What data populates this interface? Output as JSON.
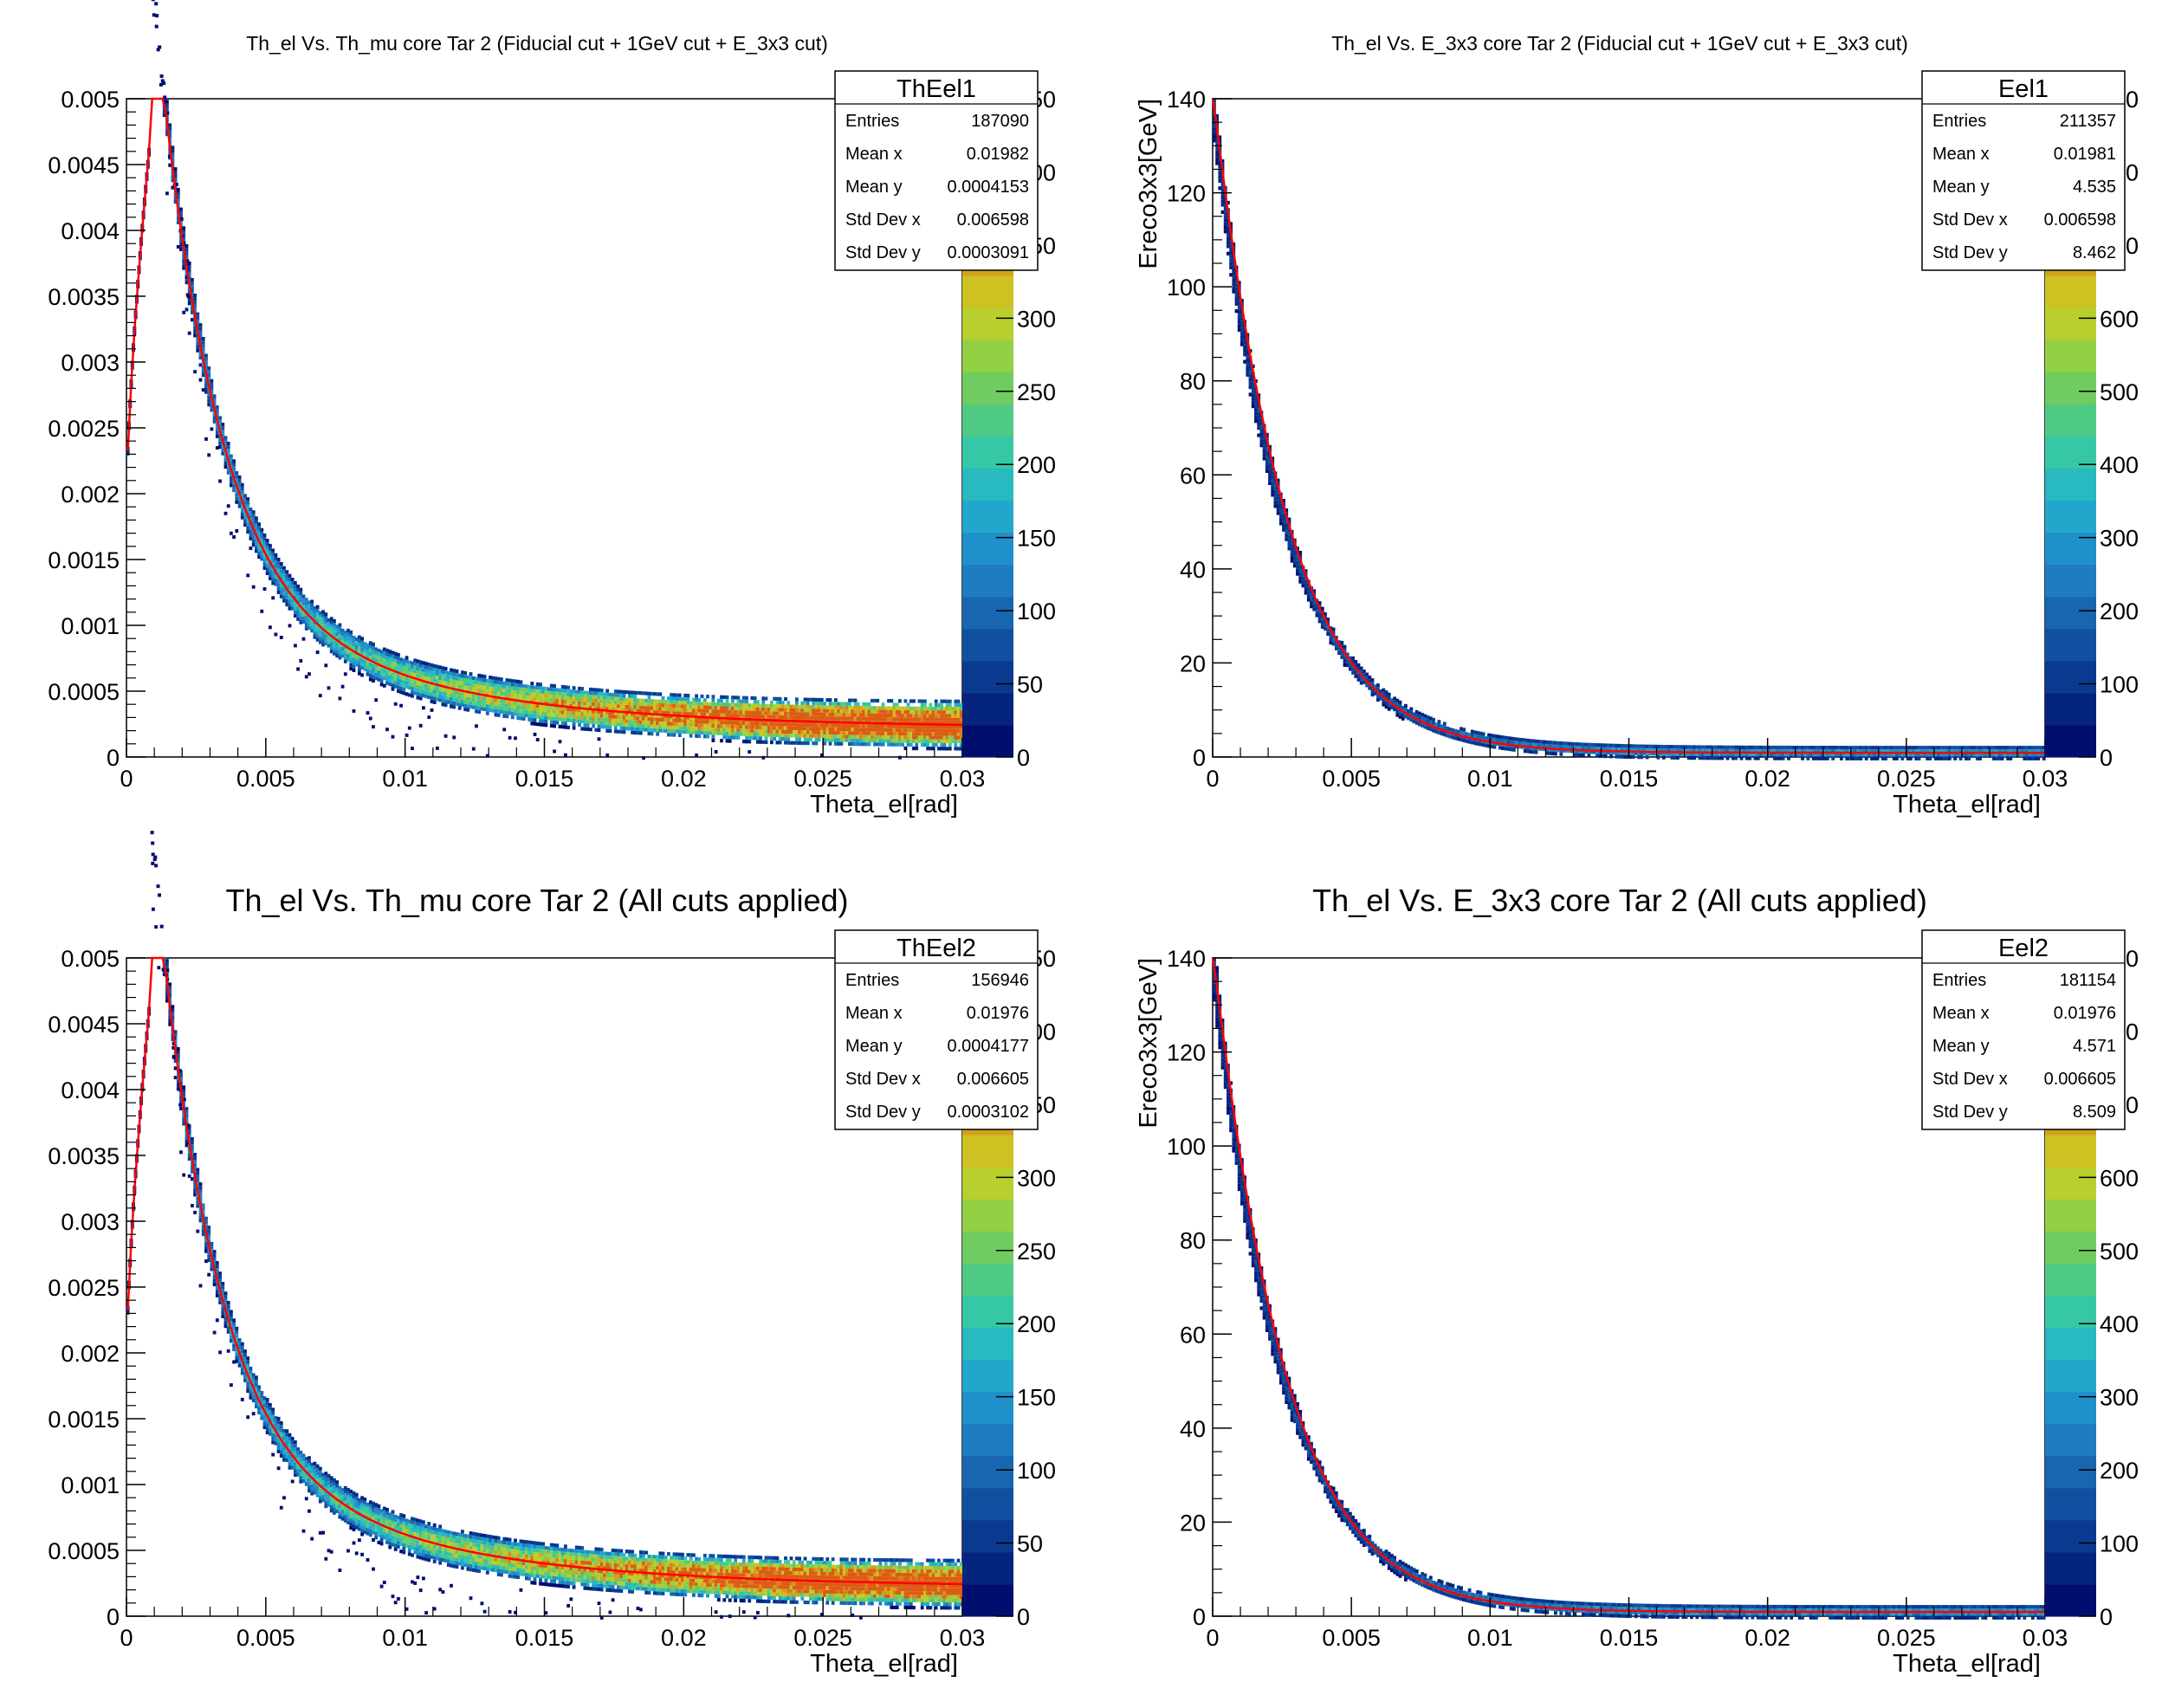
{
  "colors": {
    "palette": [
      "#000e6e",
      "#05247e",
      "#0a3a8f",
      "#1150a0",
      "#1866b0",
      "#1f7cc0",
      "#2090ca",
      "#23a6cc",
      "#29b9c0",
      "#36c7a6",
      "#4fca82",
      "#70cc60",
      "#94d043",
      "#b8cf2d",
      "#cdc222",
      "#d3a11e",
      "#d8801a",
      "#dc5c14"
    ],
    "fit_line": "#ff0000",
    "frame": "#000000"
  },
  "chart_data": [
    {
      "type": "heatmap",
      "title": "Th_el Vs. Th_mu core Tar 2 (Fiducial cut + 1GeV cut + E_3x3 cut)",
      "xlabel": "Theta_el[rad]",
      "ylabel": "",
      "xlim": [
        0,
        0.03
      ],
      "ylim": [
        0,
        0.005
      ],
      "x_ticks": [
        "0",
        "0.005",
        "0.01",
        "0.015",
        "0.02",
        "0.025",
        "0.03"
      ],
      "y_ticks": [
        "0",
        "0.0005",
        "0.001",
        "0.0015",
        "0.002",
        "0.0025",
        "0.003",
        "0.0035",
        "0.004",
        "0.0045",
        "0.005"
      ],
      "z_ticks": [
        "0",
        "50",
        "100",
        "150",
        "200",
        "250",
        "300",
        "350",
        "400",
        "450"
      ],
      "zmax": 450,
      "curve": "theta_mu",
      "stats": {
        "name": "ThEel1",
        "rows": [
          {
            "label": "Entries",
            "value": "187090"
          },
          {
            "label": "Mean x",
            "value": "0.01982"
          },
          {
            "label": "Mean y",
            "value": "0.0004153"
          },
          {
            "label": "Std Dev x",
            "value": "0.006598"
          },
          {
            "label": "Std Dev y",
            "value": "0.0003091"
          }
        ]
      }
    },
    {
      "type": "heatmap",
      "title": "Th_el Vs. E_3x3 core Tar 2 (Fiducial cut + 1GeV cut + E_3x3 cut)",
      "xlabel": "Theta_el[rad]",
      "ylabel": "Ereco3x3[GeV]",
      "xlim": [
        0,
        0.03
      ],
      "ylim": [
        0,
        140
      ],
      "x_ticks": [
        "0",
        "0.005",
        "0.01",
        "0.015",
        "0.02",
        "0.025",
        "0.03"
      ],
      "y_ticks": [
        "0",
        "20",
        "40",
        "60",
        "80",
        "100",
        "120",
        "140"
      ],
      "z_ticks": [
        "0",
        "100",
        "200",
        "300",
        "400",
        "500",
        "600",
        "700",
        "800",
        "900"
      ],
      "zmax": 900,
      "curve": "energy",
      "stats": {
        "name": "Eel1",
        "rows": [
          {
            "label": "Entries",
            "value": "211357"
          },
          {
            "label": "Mean x",
            "value": "0.01981"
          },
          {
            "label": "Mean y",
            "value": "4.535"
          },
          {
            "label": "Std Dev x",
            "value": "0.006598"
          },
          {
            "label": "Std Dev y",
            "value": "8.462"
          }
        ]
      }
    },
    {
      "type": "heatmap",
      "title": "Th_el Vs. Th_mu core Tar 2 (All cuts applied)",
      "xlabel": "Theta_el[rad]",
      "ylabel": "",
      "xlim": [
        0,
        0.03
      ],
      "ylim": [
        0,
        0.005
      ],
      "x_ticks": [
        "0",
        "0.005",
        "0.01",
        "0.015",
        "0.02",
        "0.025",
        "0.03"
      ],
      "y_ticks": [
        "0",
        "0.0005",
        "0.001",
        "0.0015",
        "0.002",
        "0.0025",
        "0.003",
        "0.0035",
        "0.004",
        "0.0045",
        "0.005"
      ],
      "z_ticks": [
        "0",
        "50",
        "100",
        "150",
        "200",
        "250",
        "300",
        "350",
        "400",
        "450"
      ],
      "zmax": 450,
      "curve": "theta_mu",
      "stats": {
        "name": "ThEel2",
        "rows": [
          {
            "label": "Entries",
            "value": "156946"
          },
          {
            "label": "Mean x",
            "value": "0.01976"
          },
          {
            "label": "Mean y",
            "value": "0.0004177"
          },
          {
            "label": "Std Dev x",
            "value": "0.006605"
          },
          {
            "label": "Std Dev y",
            "value": "0.0003102"
          }
        ]
      }
    },
    {
      "type": "heatmap",
      "title": "Th_el Vs. E_3x3 core Tar 2 (All cuts applied)",
      "xlabel": "Theta_el[rad]",
      "ylabel": "Ereco3x3[GeV]",
      "xlim": [
        0,
        0.03
      ],
      "ylim": [
        0,
        140
      ],
      "x_ticks": [
        "0",
        "0.005",
        "0.01",
        "0.015",
        "0.02",
        "0.025",
        "0.03"
      ],
      "y_ticks": [
        "0",
        "20",
        "40",
        "60",
        "80",
        "100",
        "120",
        "140"
      ],
      "z_ticks": [
        "0",
        "100",
        "200",
        "300",
        "400",
        "500",
        "600",
        "700",
        "800",
        "900"
      ],
      "zmax": 900,
      "curve": "energy",
      "stats": {
        "name": "Eel2",
        "rows": [
          {
            "label": "Entries",
            "value": "181154"
          },
          {
            "label": "Mean x",
            "value": "0.01976"
          },
          {
            "label": "Mean y",
            "value": "4.571"
          },
          {
            "label": "Std Dev x",
            "value": "0.006605"
          },
          {
            "label": "Std Dev y",
            "value": "8.509"
          }
        ]
      }
    }
  ]
}
